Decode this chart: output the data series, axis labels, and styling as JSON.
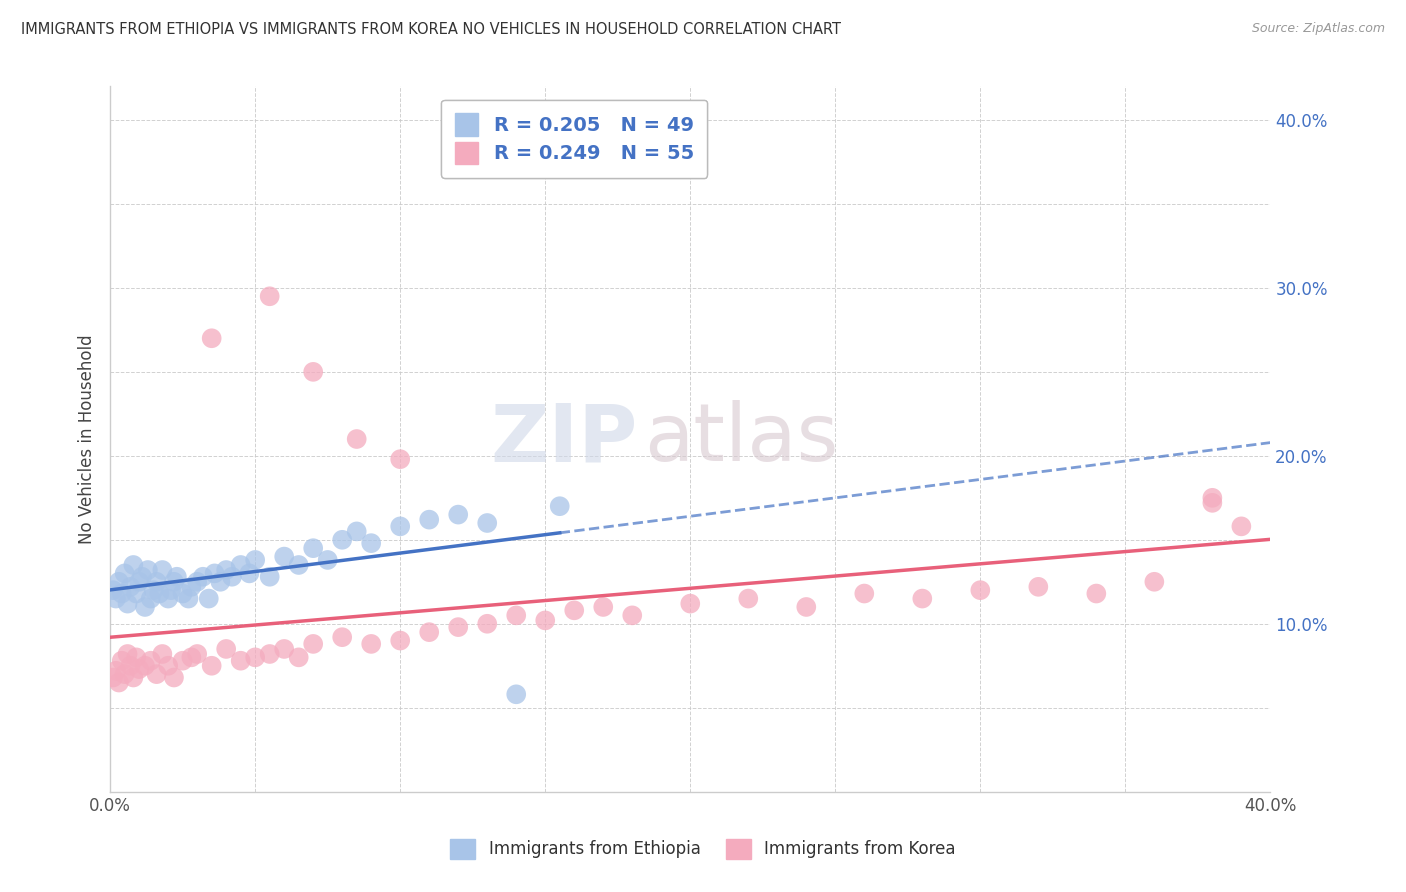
{
  "title": "IMMIGRANTS FROM ETHIOPIA VS IMMIGRANTS FROM KOREA NO VEHICLES IN HOUSEHOLD CORRELATION CHART",
  "source": "Source: ZipAtlas.com",
  "ylabel": "No Vehicles in Household",
  "x_min": 0.0,
  "x_max": 0.4,
  "y_min": 0.0,
  "y_max": 0.42,
  "ethiopia_R": "0.205",
  "ethiopia_N": "49",
  "korea_R": "0.249",
  "korea_N": "55",
  "ethiopia_color": "#A8C4E8",
  "korea_color": "#F4ABBE",
  "trend_ethiopia_color": "#4472C4",
  "trend_korea_color": "#E8607A",
  "legend_ethiopia": "Immigrants from Ethiopia",
  "legend_korea": "Immigrants from Korea",
  "ethiopia_x": [
    0.001,
    0.002,
    0.003,
    0.004,
    0.005,
    0.006,
    0.007,
    0.008,
    0.009,
    0.01,
    0.011,
    0.012,
    0.013,
    0.014,
    0.015,
    0.016,
    0.017,
    0.018,
    0.02,
    0.021,
    0.022,
    0.023,
    0.025,
    0.027,
    0.028,
    0.03,
    0.032,
    0.034,
    0.036,
    0.038,
    0.04,
    0.042,
    0.045,
    0.048,
    0.05,
    0.055,
    0.06,
    0.065,
    0.07,
    0.075,
    0.08,
    0.085,
    0.09,
    0.1,
    0.11,
    0.12,
    0.13,
    0.14,
    0.155
  ],
  "ethiopia_y": [
    0.12,
    0.115,
    0.125,
    0.118,
    0.13,
    0.112,
    0.122,
    0.135,
    0.118,
    0.125,
    0.128,
    0.11,
    0.132,
    0.115,
    0.12,
    0.125,
    0.118,
    0.132,
    0.115,
    0.12,
    0.125,
    0.128,
    0.118,
    0.115,
    0.122,
    0.125,
    0.128,
    0.115,
    0.13,
    0.125,
    0.132,
    0.128,
    0.135,
    0.13,
    0.138,
    0.128,
    0.14,
    0.135,
    0.145,
    0.138,
    0.15,
    0.155,
    0.148,
    0.158,
    0.162,
    0.165,
    0.16,
    0.058,
    0.17
  ],
  "korea_x": [
    0.001,
    0.002,
    0.003,
    0.004,
    0.005,
    0.006,
    0.007,
    0.008,
    0.009,
    0.01,
    0.012,
    0.014,
    0.016,
    0.018,
    0.02,
    0.022,
    0.025,
    0.028,
    0.03,
    0.035,
    0.04,
    0.045,
    0.05,
    0.055,
    0.06,
    0.065,
    0.07,
    0.08,
    0.09,
    0.1,
    0.11,
    0.12,
    0.13,
    0.14,
    0.15,
    0.16,
    0.17,
    0.18,
    0.2,
    0.22,
    0.24,
    0.26,
    0.28,
    0.3,
    0.32,
    0.34,
    0.36,
    0.38,
    0.39,
    0.035,
    0.055,
    0.07,
    0.085,
    0.1,
    0.38
  ],
  "korea_y": [
    0.068,
    0.072,
    0.065,
    0.078,
    0.07,
    0.082,
    0.075,
    0.068,
    0.08,
    0.073,
    0.075,
    0.078,
    0.07,
    0.082,
    0.075,
    0.068,
    0.078,
    0.08,
    0.082,
    0.075,
    0.085,
    0.078,
    0.08,
    0.082,
    0.085,
    0.08,
    0.088,
    0.092,
    0.088,
    0.09,
    0.095,
    0.098,
    0.1,
    0.105,
    0.102,
    0.108,
    0.11,
    0.105,
    0.112,
    0.115,
    0.11,
    0.118,
    0.115,
    0.12,
    0.122,
    0.118,
    0.125,
    0.172,
    0.158,
    0.27,
    0.295,
    0.25,
    0.21,
    0.198,
    0.175
  ]
}
